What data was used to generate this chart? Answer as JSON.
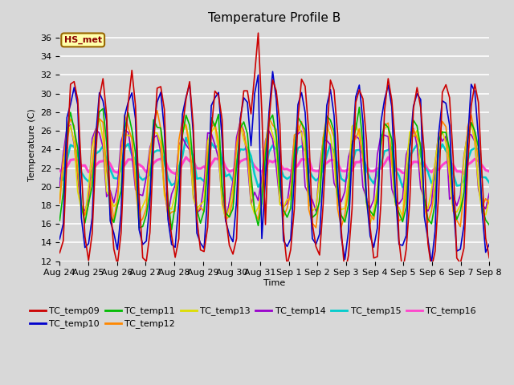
{
  "title": "Temperature Profile B",
  "xlabel": "Time",
  "ylabel": "Temperature (C)",
  "ylim": [
    12,
    37
  ],
  "yticks": [
    12,
    14,
    16,
    18,
    20,
    22,
    24,
    26,
    28,
    30,
    32,
    34,
    36
  ],
  "x_tick_labels": [
    "Aug 24",
    "Aug 25",
    "Aug 26",
    "Aug 27",
    "Aug 28",
    "Aug 29",
    "Aug 30",
    "Aug 31",
    "Sep 1",
    "Sep 2",
    "Sep 3",
    "Sep 4",
    "Sep 5",
    "Sep 6",
    "Sep 7",
    "Sep 8"
  ],
  "annotation_text": "HS_met",
  "series_colors": {
    "TC_temp09": "#cc0000",
    "TC_temp10": "#0000cc",
    "TC_temp11": "#00bb00",
    "TC_temp12": "#ff8800",
    "TC_temp13": "#dddd00",
    "TC_temp14": "#9900cc",
    "TC_temp15": "#00cccc",
    "TC_temp16": "#ff44cc"
  },
  "legend_entries": [
    "TC_temp09",
    "TC_temp10",
    "TC_temp11",
    "TC_temp12",
    "TC_temp13",
    "TC_temp14",
    "TC_temp15",
    "TC_temp16"
  ],
  "bg_color": "#d8d8d8",
  "plot_bg_color": "#d8d8d8",
  "grid_color": "#ffffff",
  "n_days": 15,
  "pts_per_day": 8
}
